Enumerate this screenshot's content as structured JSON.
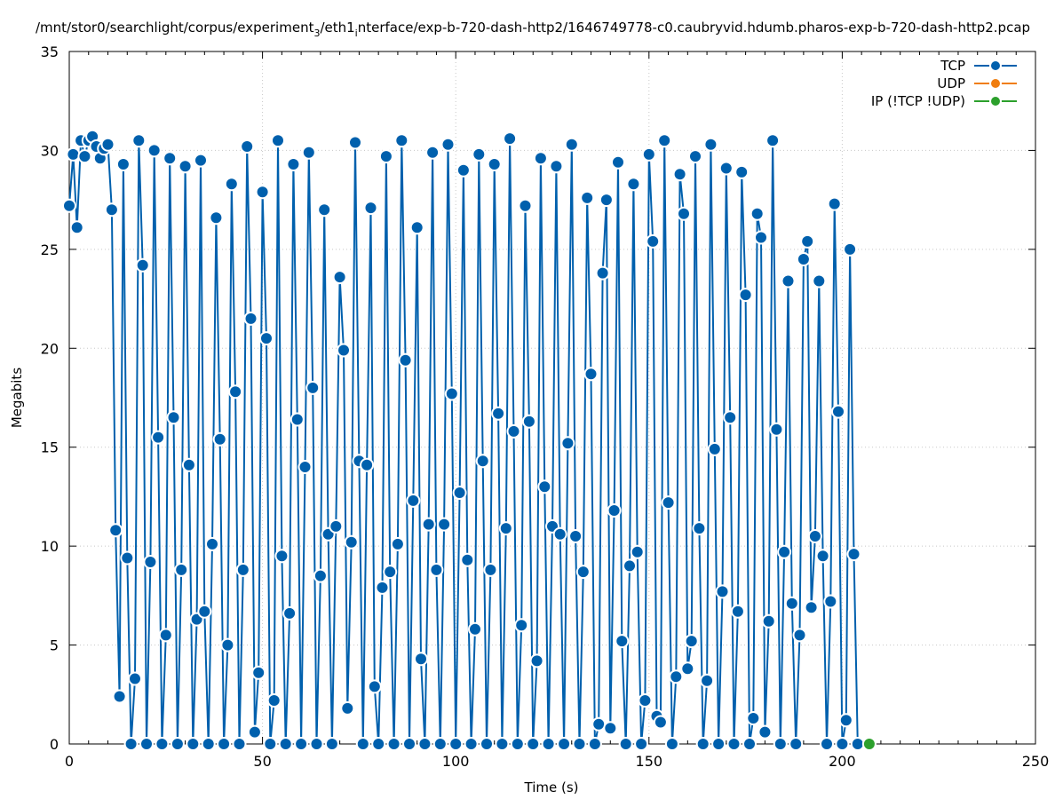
{
  "chart_data": {
    "type": "line",
    "title": "/mnt/stor0/searchlight/corpus/experiment_3/eth1_interface/exp-b-720-dash-http2/1646749778-c0.caubryvid.hdumb.pharos-exp-b-720-dash-http2.pcap",
    "title_parts": {
      "a": "/mnt/stor0/searchlight/corpus/experiment",
      "a_sub": "3",
      "b": "/eth1",
      "b_sub": "i",
      "c": "nterface/exp-b-720-dash-http2/1646749778-c0.caubryvid.hdumb.pharos-exp-b-720-dash-http2.pcap"
    },
    "xlabel": "Time (s)",
    "ylabel": "Megabits",
    "xlim": [
      0,
      250
    ],
    "ylim": [
      0,
      35
    ],
    "xticks": [
      0,
      50,
      100,
      150,
      200,
      250
    ],
    "yticks": [
      0,
      5,
      10,
      15,
      20,
      25,
      30,
      35
    ],
    "grid": true,
    "legend_position": "top-right",
    "series": [
      {
        "name": "TCP",
        "color": "#0060ad",
        "points": [
          [
            0,
            27.2
          ],
          [
            1,
            29.8
          ],
          [
            2,
            26.1
          ],
          [
            3,
            30.5
          ],
          [
            4,
            29.7
          ],
          [
            5,
            30.5
          ],
          [
            6,
            30.7
          ],
          [
            7,
            30.2
          ],
          [
            8,
            29.6
          ],
          [
            9,
            30.1
          ],
          [
            10,
            30.3
          ],
          [
            11,
            27.0
          ],
          [
            12,
            10.8
          ],
          [
            13,
            2.4
          ],
          [
            14,
            29.3
          ],
          [
            15,
            9.4
          ],
          [
            16,
            0.0
          ],
          [
            17,
            3.3
          ],
          [
            18,
            30.5
          ],
          [
            19,
            24.2
          ],
          [
            20,
            0.0
          ],
          [
            21,
            9.2
          ],
          [
            22,
            30.0
          ],
          [
            23,
            15.5
          ],
          [
            24,
            0.0
          ],
          [
            25,
            5.5
          ],
          [
            26,
            29.6
          ],
          [
            27,
            16.5
          ],
          [
            28,
            0.0
          ],
          [
            29,
            8.8
          ],
          [
            30,
            29.2
          ],
          [
            31,
            14.1
          ],
          [
            32,
            0.0
          ],
          [
            33,
            6.3
          ],
          [
            34,
            29.5
          ],
          [
            35,
            6.7
          ],
          [
            36,
            0.0
          ],
          [
            37,
            10.1
          ],
          [
            38,
            26.6
          ],
          [
            39,
            15.4
          ],
          [
            40,
            0.0
          ],
          [
            41,
            5.0
          ],
          [
            42,
            28.3
          ],
          [
            43,
            17.8
          ],
          [
            44,
            0.0
          ],
          [
            45,
            8.8
          ],
          [
            46,
            30.2
          ],
          [
            47,
            21.5
          ],
          [
            48,
            0.6
          ],
          [
            49,
            3.6
          ],
          [
            50,
            27.9
          ],
          [
            51,
            20.5
          ],
          [
            52,
            0.0
          ],
          [
            53,
            2.2
          ],
          [
            54,
            30.5
          ],
          [
            55,
            9.5
          ],
          [
            56,
            0.0
          ],
          [
            57,
            6.6
          ],
          [
            58,
            29.3
          ],
          [
            59,
            16.4
          ],
          [
            60,
            0.0
          ],
          [
            61,
            14.0
          ],
          [
            62,
            29.9
          ],
          [
            63,
            18.0
          ],
          [
            64,
            0.0
          ],
          [
            65,
            8.5
          ],
          [
            66,
            27.0
          ],
          [
            67,
            10.6
          ],
          [
            68,
            0.0
          ],
          [
            69,
            11.0
          ],
          [
            70,
            23.6
          ],
          [
            71,
            19.9
          ],
          [
            72,
            1.8
          ],
          [
            73,
            10.2
          ],
          [
            74,
            30.4
          ],
          [
            75,
            14.3
          ],
          [
            76,
            0.0
          ],
          [
            77,
            14.1
          ],
          [
            78,
            27.1
          ],
          [
            79,
            2.9
          ],
          [
            80,
            0.0
          ],
          [
            81,
            7.9
          ],
          [
            82,
            29.7
          ],
          [
            83,
            8.7
          ],
          [
            84,
            0.0
          ],
          [
            85,
            10.1
          ],
          [
            86,
            30.5
          ],
          [
            87,
            19.4
          ],
          [
            88,
            0.0
          ],
          [
            89,
            12.3
          ],
          [
            90,
            26.1
          ],
          [
            91,
            4.3
          ],
          [
            92,
            0.0
          ],
          [
            93,
            11.1
          ],
          [
            94,
            29.9
          ],
          [
            95,
            8.8
          ],
          [
            96,
            0.0
          ],
          [
            97,
            11.1
          ],
          [
            98,
            30.3
          ],
          [
            99,
            17.7
          ],
          [
            100,
            0.0
          ],
          [
            101,
            12.7
          ],
          [
            102,
            29.0
          ],
          [
            103,
            9.3
          ],
          [
            104,
            0.0
          ],
          [
            105,
            5.8
          ],
          [
            106,
            29.8
          ],
          [
            107,
            14.3
          ],
          [
            108,
            0.0
          ],
          [
            109,
            8.8
          ],
          [
            110,
            29.3
          ],
          [
            111,
            16.7
          ],
          [
            112,
            0.0
          ],
          [
            113,
            10.9
          ],
          [
            114,
            30.6
          ],
          [
            115,
            15.8
          ],
          [
            116,
            0.0
          ],
          [
            117,
            6.0
          ],
          [
            118,
            27.2
          ],
          [
            119,
            16.3
          ],
          [
            120,
            0.0
          ],
          [
            121,
            4.2
          ],
          [
            122,
            29.6
          ],
          [
            123,
            13.0
          ],
          [
            124,
            0.0
          ],
          [
            125,
            11.0
          ],
          [
            126,
            29.2
          ],
          [
            127,
            10.6
          ],
          [
            128,
            0.0
          ],
          [
            129,
            15.2
          ],
          [
            130,
            30.3
          ],
          [
            131,
            10.5
          ],
          [
            132,
            0.0
          ],
          [
            133,
            8.7
          ],
          [
            134,
            27.6
          ],
          [
            135,
            18.7
          ],
          [
            136,
            0.0
          ],
          [
            137,
            1.0
          ],
          [
            138,
            23.8
          ],
          [
            139,
            27.5
          ],
          [
            140,
            0.8
          ],
          [
            141,
            11.8
          ],
          [
            142,
            29.4
          ],
          [
            143,
            5.2
          ],
          [
            144,
            0.0
          ],
          [
            145,
            9.0
          ],
          [
            146,
            28.3
          ],
          [
            147,
            9.7
          ],
          [
            148,
            0.0
          ],
          [
            149,
            2.2
          ],
          [
            150,
            29.8
          ],
          [
            151,
            25.4
          ],
          [
            152,
            1.4
          ],
          [
            153,
            1.1
          ],
          [
            154,
            30.5
          ],
          [
            155,
            12.2
          ],
          [
            156,
            0.0
          ],
          [
            157,
            3.4
          ],
          [
            158,
            28.8
          ],
          [
            159,
            26.8
          ],
          [
            160,
            3.8
          ],
          [
            161,
            5.2
          ],
          [
            162,
            29.7
          ],
          [
            163,
            10.9
          ],
          [
            164,
            0.0
          ],
          [
            165,
            3.2
          ],
          [
            166,
            30.3
          ],
          [
            167,
            14.9
          ],
          [
            168,
            0.0
          ],
          [
            169,
            7.7
          ],
          [
            170,
            29.1
          ],
          [
            171,
            16.5
          ],
          [
            172,
            0.0
          ],
          [
            173,
            6.7
          ],
          [
            174,
            28.9
          ],
          [
            175,
            22.7
          ],
          [
            176,
            0.0
          ],
          [
            177,
            1.3
          ],
          [
            178,
            26.8
          ],
          [
            179,
            25.6
          ],
          [
            180,
            0.6
          ],
          [
            181,
            6.2
          ],
          [
            182,
            30.5
          ],
          [
            183,
            15.9
          ],
          [
            184,
            0.0
          ],
          [
            185,
            9.7
          ],
          [
            186,
            23.4
          ],
          [
            187,
            7.1
          ],
          [
            188,
            0.0
          ],
          [
            189,
            5.5
          ],
          [
            190,
            24.5
          ],
          [
            191,
            25.4
          ],
          [
            192,
            6.9
          ],
          [
            193,
            10.5
          ],
          [
            194,
            23.4
          ],
          [
            195,
            9.5
          ],
          [
            196,
            0.0
          ],
          [
            197,
            7.2
          ],
          [
            198,
            27.3
          ],
          [
            199,
            16.8
          ],
          [
            200,
            0.0
          ],
          [
            201,
            1.2
          ],
          [
            202,
            25.0
          ],
          [
            203,
            9.6
          ],
          [
            204,
            0.0
          ]
        ]
      },
      {
        "name": "UDP",
        "color": "#f07d0e",
        "points": []
      },
      {
        "name": "IP (!TCP  !UDP)",
        "color": "#2ca02c",
        "points": [
          [
            207,
            0.0
          ]
        ]
      }
    ]
  }
}
